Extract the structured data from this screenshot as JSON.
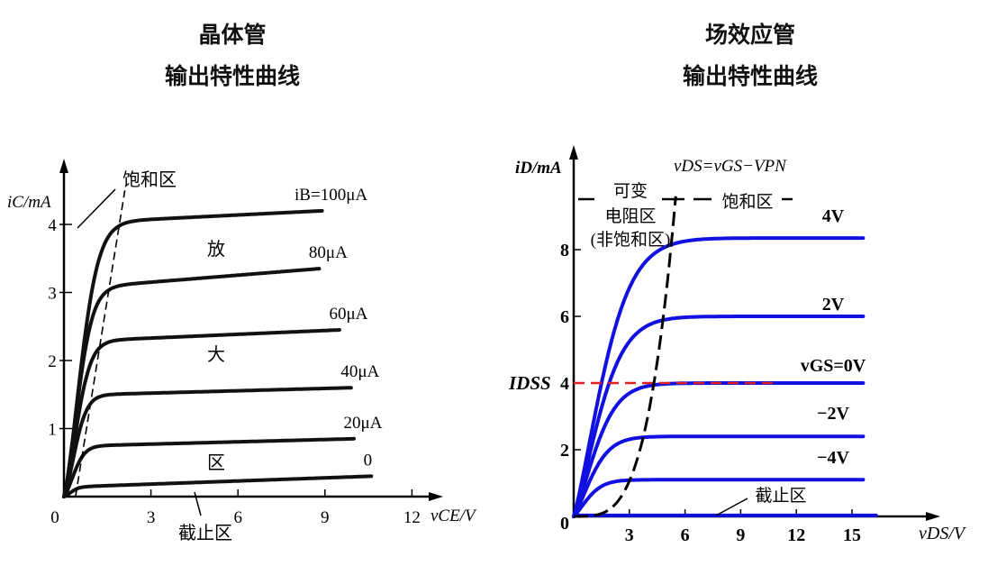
{
  "titles": {
    "left": {
      "line1": "晶体管",
      "line2": "输出特性曲线"
    },
    "right": {
      "line1": "场效应管",
      "line2": "输出特性曲线"
    }
  },
  "chart_data": [
    {
      "type": "line",
      "ylabel": "iC/mA",
      "xlabel": "vCE/V",
      "xticks": [
        "0",
        "3",
        "6",
        "9",
        "12"
      ],
      "yticks": [
        "1",
        "2",
        "3",
        "4"
      ],
      "xlim": [
        0,
        12.5
      ],
      "ylim": [
        0,
        4.6
      ],
      "color": "#111111",
      "series": [
        {
          "name": "iB=100μA",
          "x_end": 8.9,
          "plateau": [
            4.05,
            4.2
          ],
          "knee": 1.8
        },
        {
          "name": "80μA",
          "x_end": 8.8,
          "plateau": [
            3.1,
            3.35
          ],
          "knee": 1.5
        },
        {
          "name": "60μA",
          "x_end": 9.5,
          "plateau": [
            2.3,
            2.45
          ],
          "knee": 1.4
        },
        {
          "name": "40μA",
          "x_end": 9.9,
          "plateau": [
            1.5,
            1.6
          ],
          "knee": 1.2
        },
        {
          "name": "20μA",
          "x_end": 10.0,
          "plateau": [
            0.75,
            0.85
          ],
          "knee": 1.1
        },
        {
          "name": "0",
          "x_end": 10.6,
          "plateau": [
            0.15,
            0.3
          ],
          "knee": 0.8
        }
      ],
      "boundary": [
        [
          0.4,
          0
        ],
        [
          2.1,
          4.5
        ]
      ],
      "annotations": {
        "saturation": "饱和区",
        "amplify1": "放",
        "amplify2": "大",
        "amplify3": "区",
        "cutoff": "截止区"
      }
    },
    {
      "type": "line",
      "ylabel": "iD/mA",
      "xlabel": "vDS/V",
      "xticks": [
        "3",
        "6",
        "9",
        "12",
        "15"
      ],
      "yticks": [
        "0",
        "2",
        "4",
        "6",
        "8"
      ],
      "xlim": [
        0,
        16.5
      ],
      "ylim": [
        0,
        9.8
      ],
      "color": "#1010e0",
      "series": [
        {
          "name": "4V",
          "x_end": 15.6,
          "plateau": 8.35,
          "knee": 4.8
        },
        {
          "name": "2V",
          "x_end": 15.6,
          "plateau": 6.0,
          "knee": 4.2
        },
        {
          "name": "vGS=0V",
          "x_end": 15.6,
          "plateau": 4.0,
          "knee": 3.6
        },
        {
          "name": "−2V",
          "x_end": 15.6,
          "plateau": 2.4,
          "knee": 3.0
        },
        {
          "name": "−4V",
          "x_end": 15.6,
          "plateau": 1.1,
          "knee": 2.4
        },
        {
          "name": "cutoff",
          "x_end": 16.3,
          "plateau": 0.03,
          "knee": 0.3
        }
      ],
      "idss": {
        "label": "IDSS",
        "value": 4,
        "x_end": 11,
        "color": "#e02020"
      },
      "boundary_label": "vDS=vGS−VPN",
      "annotations": {
        "variable1": "可变",
        "variable2": "电阻区",
        "variable3": "(非饱和区)",
        "saturation": "饱和区",
        "cutoff": "截止区"
      }
    }
  ]
}
